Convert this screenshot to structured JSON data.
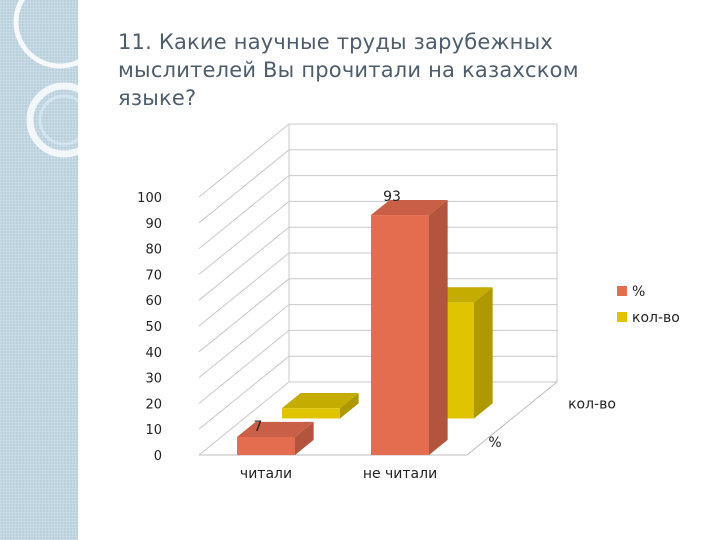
{
  "slide": {
    "title": "11. Какие научные труды зарубежных мыслителей Вы прочитали на казахском языке?"
  },
  "chart_data": {
    "type": "bar",
    "style": "3d-clustered",
    "categories": [
      "читали",
      "не читали"
    ],
    "series": [
      {
        "name": "%",
        "values": [
          7,
          93
        ],
        "color": "#e46c4f",
        "data_labels": [
          "7",
          "93"
        ]
      },
      {
        "name": "кол-во",
        "values": [
          4,
          45
        ],
        "color": "#e0c400",
        "data_labels": [
          "",
          ""
        ]
      }
    ],
    "depth_labels": [
      "%",
      "кол-во"
    ],
    "yticks": [
      "0",
      "10",
      "20",
      "30",
      "40",
      "50",
      "60",
      "70",
      "80",
      "90",
      "100"
    ],
    "ylim": [
      0,
      100
    ],
    "grid": true,
    "legend": {
      "position": "right",
      "entries": [
        "%",
        "кол-во"
      ]
    }
  }
}
